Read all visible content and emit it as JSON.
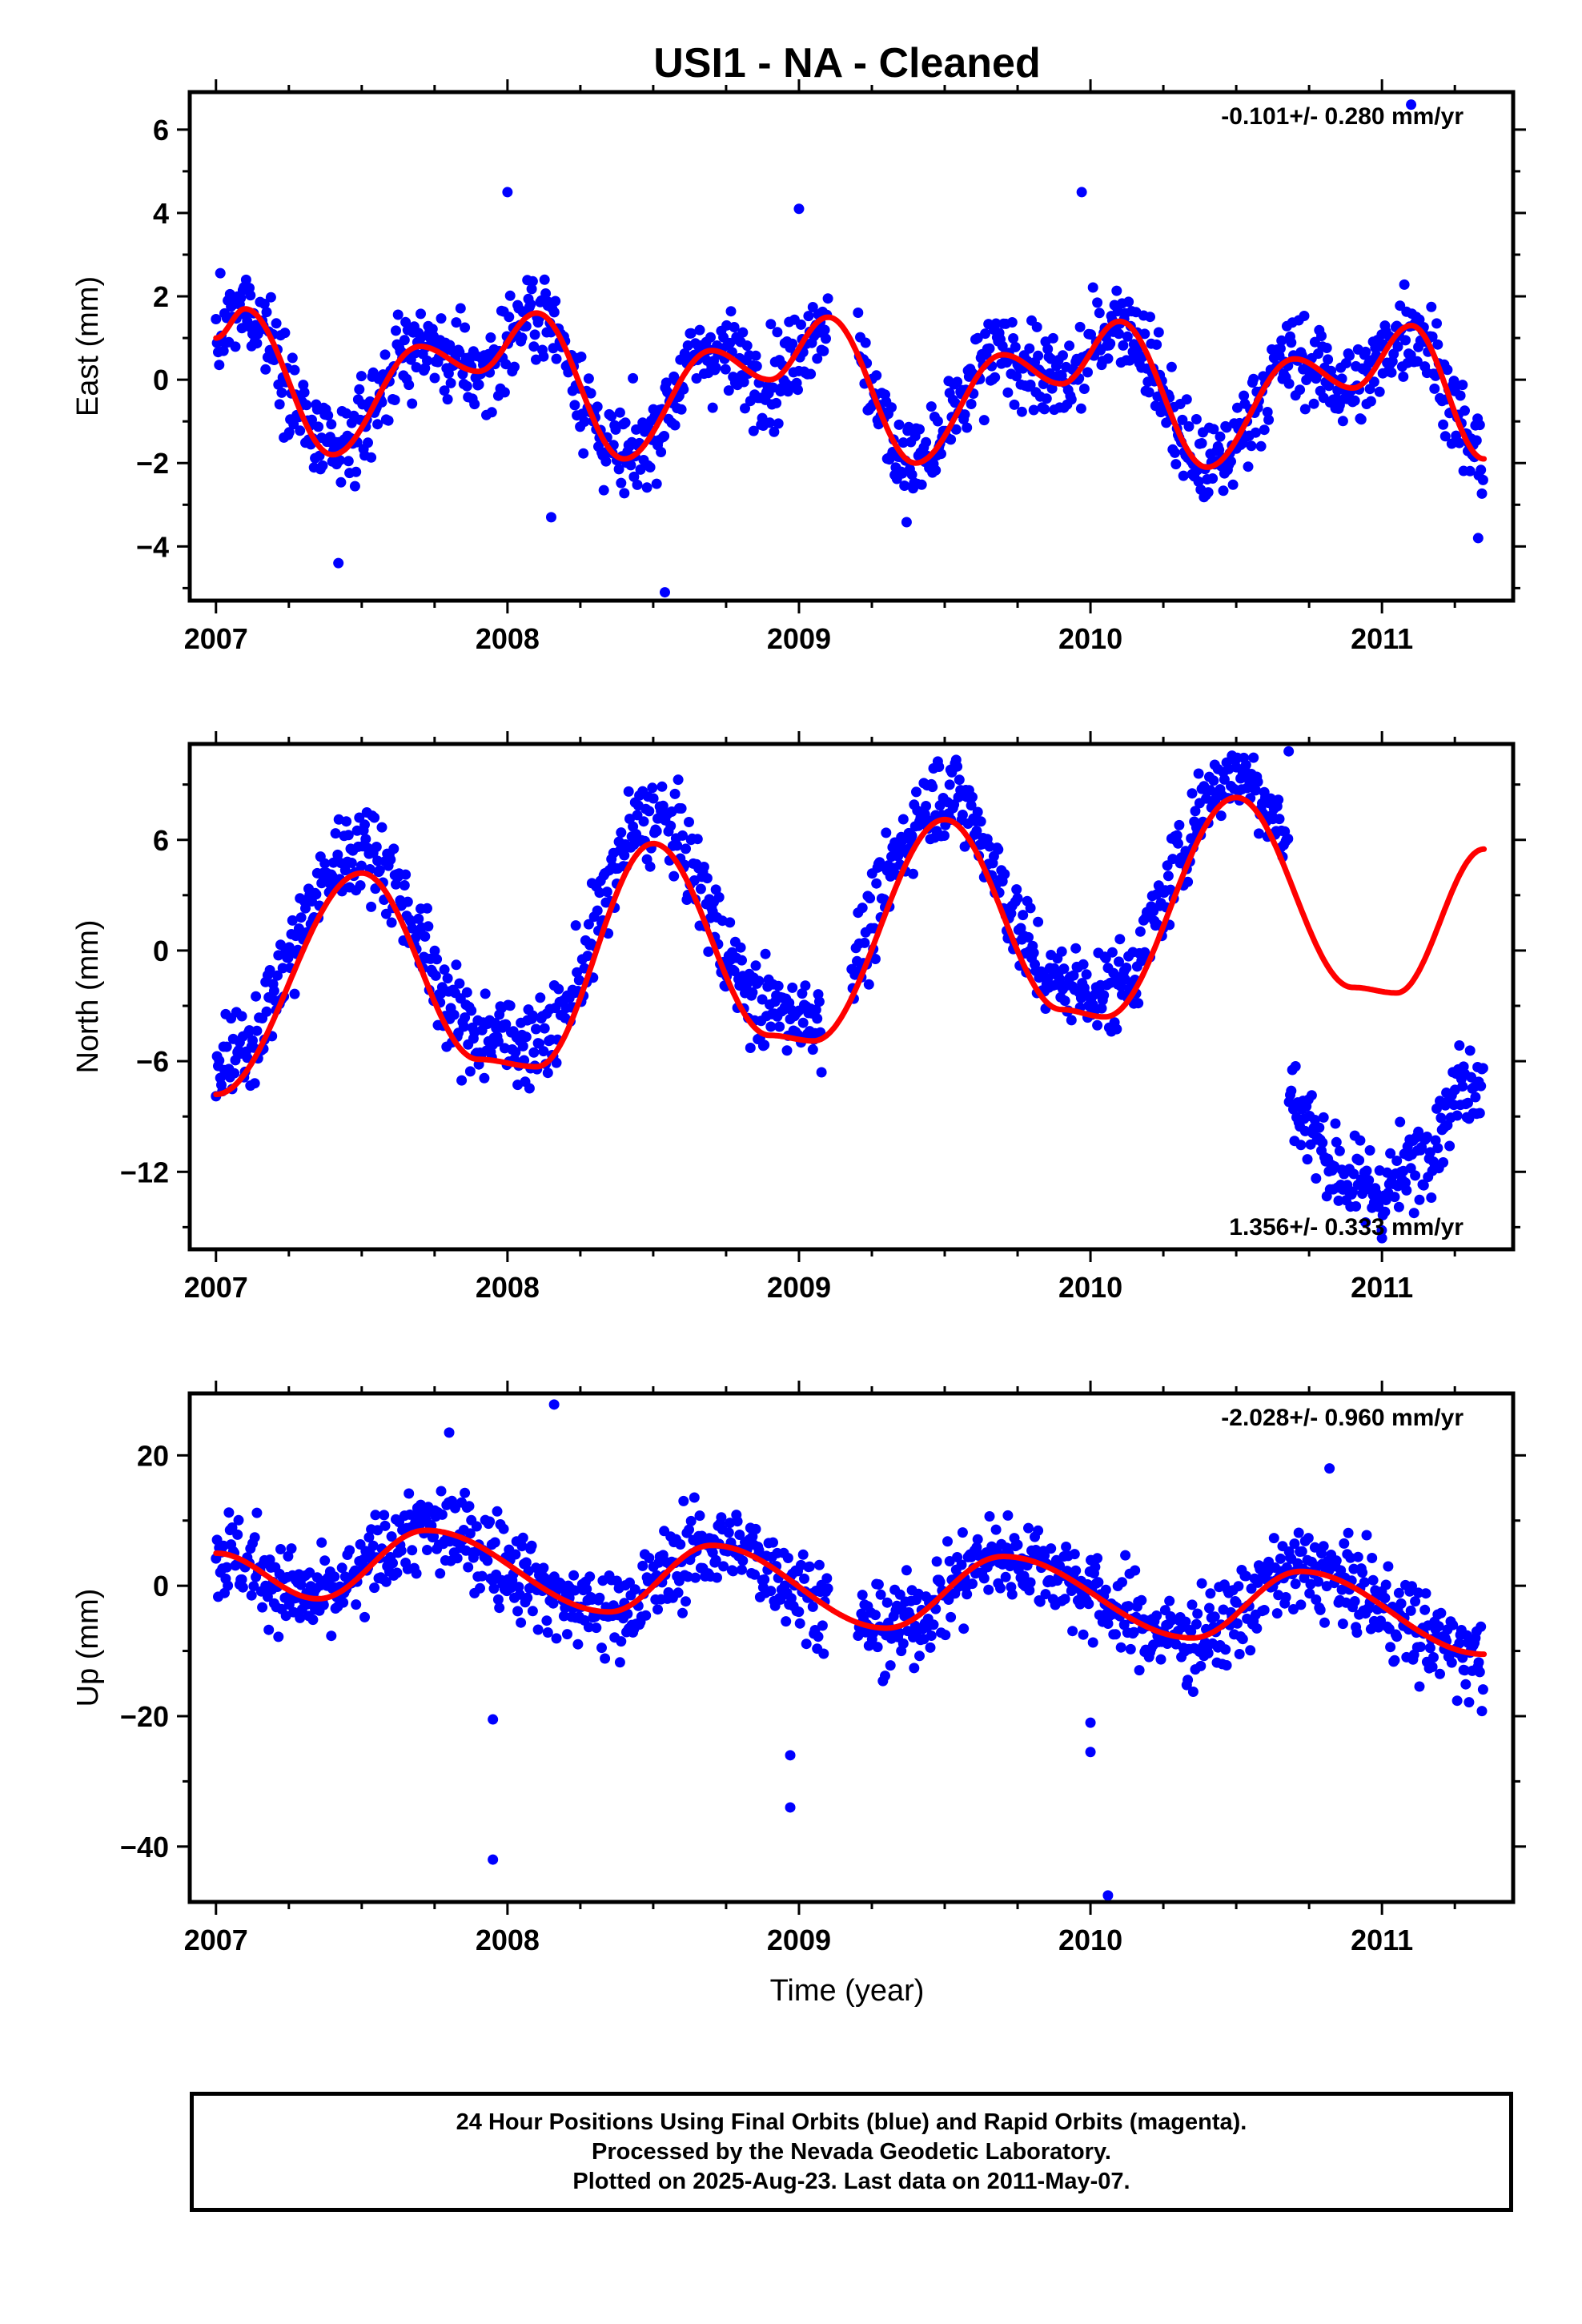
{
  "chart_data": {
    "type": "scatter",
    "title": "USI1  - NA - Cleaned",
    "xlabel": "Time (year)",
    "x_ticks": [
      "2007",
      "2008",
      "2009",
      "2010",
      "2011"
    ],
    "xlim": [
      2006.91,
      2011.45
    ],
    "colors": {
      "daily_positions": "#0000ff",
      "model_fit": "#ff0000",
      "frame": "#000000"
    },
    "panels": [
      {
        "id": "east",
        "ylabel": "East (mm)",
        "ylim": [
          -5.3,
          6.9
        ],
        "y_ticks": [
          -4,
          -2,
          0,
          2,
          4,
          6
        ],
        "rate_label": "-0.101+/- 0.280 mm/yr",
        "rate_position": "top-right",
        "fit_key_points": [
          [
            2007.0,
            1.0
          ],
          [
            2007.1,
            1.7
          ],
          [
            2007.4,
            -1.8
          ],
          [
            2007.7,
            0.8
          ],
          [
            2007.9,
            0.2
          ],
          [
            2008.1,
            1.6
          ],
          [
            2008.4,
            -1.9
          ],
          [
            2008.7,
            0.7
          ],
          [
            2008.9,
            0.0
          ],
          [
            2009.1,
            1.5
          ],
          [
            2009.4,
            -2.0
          ],
          [
            2009.7,
            0.6
          ],
          [
            2009.9,
            -0.1
          ],
          [
            2010.1,
            1.4
          ],
          [
            2010.4,
            -2.1
          ],
          [
            2010.7,
            0.5
          ],
          [
            2010.9,
            -0.2
          ],
          [
            2011.1,
            1.3
          ],
          [
            2011.35,
            -1.9
          ]
        ],
        "outliers": [
          [
            2007.42,
            -4.4
          ],
          [
            2008.54,
            -5.1
          ],
          [
            2009.0,
            4.1
          ],
          [
            2009.97,
            4.5
          ],
          [
            2011.1,
            6.6
          ],
          [
            2011.33,
            -3.8
          ],
          [
            2008.0,
            4.5
          ],
          [
            2008.15,
            -3.3
          ]
        ]
      },
      {
        "id": "north",
        "ylabel": "North (mm)",
        "ylim": [
          -16.2,
          11.2
        ],
        "y_ticks": [
          -12,
          -6,
          0,
          6
        ],
        "rate_label": "1.356+/- 0.333 mm/yr",
        "rate_position": "bottom-right",
        "fit_key_points": [
          [
            2007.0,
            -7.8
          ],
          [
            2007.5,
            4.2
          ],
          [
            2007.9,
            -5.9
          ],
          [
            2008.1,
            -6.3
          ],
          [
            2008.5,
            5.8
          ],
          [
            2008.9,
            -4.6
          ],
          [
            2009.05,
            -4.9
          ],
          [
            2009.5,
            7.1
          ],
          [
            2009.9,
            -3.2
          ],
          [
            2010.05,
            -3.6
          ],
          [
            2010.5,
            8.3
          ],
          [
            2010.9,
            -2.0
          ],
          [
            2011.05,
            -2.3
          ],
          [
            2011.35,
            5.5
          ]
        ],
        "outliers": [
          [
            2010.68,
            10.8
          ],
          [
            2011.0,
            -15.6
          ],
          [
            2009.52,
            9.8
          ]
        ]
      },
      {
        "id": "up",
        "ylabel": "Up (mm)",
        "ylim": [
          -48.5,
          29.5
        ],
        "y_ticks": [
          -40,
          -20,
          0,
          20
        ],
        "rate_label": "-2.028+/- 0.960 mm/yr",
        "rate_position": "top-right",
        "fit_key_points": [
          [
            2007.0,
            5.0
          ],
          [
            2007.35,
            -2.0
          ],
          [
            2007.72,
            8.5
          ],
          [
            2008.35,
            -4.0
          ],
          [
            2008.7,
            6.2
          ],
          [
            2009.3,
            -6.5
          ],
          [
            2009.7,
            4.5
          ],
          [
            2010.35,
            -8.0
          ],
          [
            2010.72,
            2.2
          ],
          [
            2011.35,
            -10.5
          ]
        ],
        "outliers": [
          [
            2007.95,
            -20.5
          ],
          [
            2007.95,
            -42.0
          ],
          [
            2008.16,
            27.8
          ],
          [
            2007.8,
            23.5
          ],
          [
            2008.97,
            -26.0
          ],
          [
            2008.97,
            -34.0
          ],
          [
            2010.0,
            -21.0
          ],
          [
            2010.0,
            -25.5
          ],
          [
            2010.06,
            -47.5
          ],
          [
            2010.82,
            18.0
          ]
        ]
      }
    ]
  },
  "footer": {
    "line1": "24 Hour Positions Using Final Orbits (blue) and Rapid Orbits (magenta).",
    "line2": "Processed by the Nevada Geodetic Laboratory.",
    "line3": "Plotted on 2025-Aug-23. Last data on 2011-May-07."
  }
}
